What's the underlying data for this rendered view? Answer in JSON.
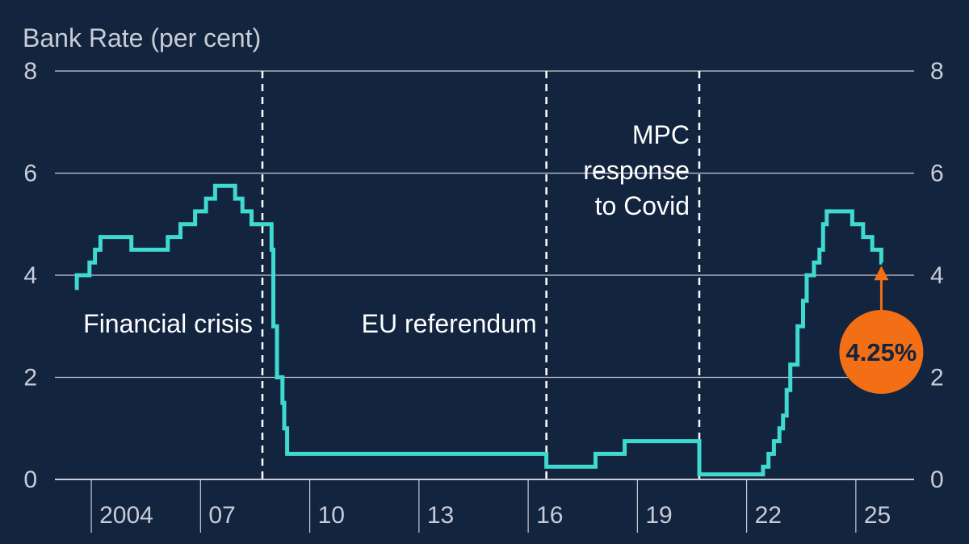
{
  "chart_data": {
    "type": "line",
    "title": "",
    "ylabel": "Bank Rate (per cent)",
    "xlabel": "",
    "ylim": [
      0,
      8
    ],
    "xlim": [
      2002.5,
      2026.1
    ],
    "yticks": [
      0,
      2,
      4,
      6,
      8
    ],
    "y_axis_sides": "left and right",
    "grid": "horizontal",
    "xtick_labels": [
      {
        "x": 2004,
        "label": "2004"
      },
      {
        "x": 2007,
        "label": "07"
      },
      {
        "x": 2010,
        "label": "10"
      },
      {
        "x": 2013,
        "label": "13"
      },
      {
        "x": 2016,
        "label": "16"
      },
      {
        "x": 2019,
        "label": "19"
      },
      {
        "x": 2022,
        "label": "22"
      },
      {
        "x": 2025,
        "label": "25"
      }
    ],
    "series": [
      {
        "color": "#3fd9cf",
        "step": true,
        "points": [
          [
            2003.05,
            3.75
          ],
          [
            2003.1,
            4.0
          ],
          [
            2003.45,
            4.25
          ],
          [
            2003.6,
            4.5
          ],
          [
            2003.75,
            4.75
          ],
          [
            2004.6,
            4.5
          ],
          [
            2005.6,
            4.75
          ],
          [
            2005.95,
            5.0
          ],
          [
            2006.35,
            5.25
          ],
          [
            2006.65,
            5.5
          ],
          [
            2006.9,
            5.75
          ],
          [
            2007.45,
            5.5
          ],
          [
            2007.65,
            5.25
          ],
          [
            2007.9,
            5.0
          ],
          [
            2008.45,
            4.5
          ],
          [
            2008.5,
            3.0
          ],
          [
            2008.6,
            2.0
          ],
          [
            2008.75,
            1.5
          ],
          [
            2008.8,
            1.0
          ],
          [
            2008.88,
            0.5
          ],
          [
            2016.0,
            0.25
          ],
          [
            2017.35,
            0.5
          ],
          [
            2018.15,
            0.75
          ],
          [
            2020.2,
            0.1
          ],
          [
            2021.95,
            0.25
          ],
          [
            2022.1,
            0.5
          ],
          [
            2022.25,
            0.75
          ],
          [
            2022.4,
            1.0
          ],
          [
            2022.5,
            1.25
          ],
          [
            2022.6,
            1.75
          ],
          [
            2022.7,
            2.25
          ],
          [
            2022.9,
            3.0
          ],
          [
            2023.05,
            3.5
          ],
          [
            2023.15,
            4.0
          ],
          [
            2023.35,
            4.25
          ],
          [
            2023.5,
            4.5
          ],
          [
            2023.6,
            5.0
          ],
          [
            2023.7,
            5.25
          ],
          [
            2024.4,
            5.0
          ],
          [
            2024.7,
            4.75
          ],
          [
            2024.95,
            4.5
          ],
          [
            2025.2,
            4.25
          ],
          [
            2025.22,
            4.25
          ]
        ]
      }
    ],
    "event_lines": [
      {
        "x": 2008.2,
        "label": [
          "Financial crisis"
        ]
      },
      {
        "x": 2016.0,
        "label": [
          "EU referendum"
        ]
      },
      {
        "x": 2020.2,
        "label": [
          "MPC",
          "response",
          "to Covid"
        ]
      }
    ],
    "callout": {
      "label": "4.25%",
      "x": 2025.2,
      "y": 4.25,
      "fill": "#f36f16",
      "arrow_color": "#f36f16"
    },
    "colors": {
      "background": "#13243f",
      "line": "#3fd9cf",
      "grid": "#c8ccd6",
      "text": "#ffffff",
      "axis_text": "#c8ccd6"
    }
  }
}
